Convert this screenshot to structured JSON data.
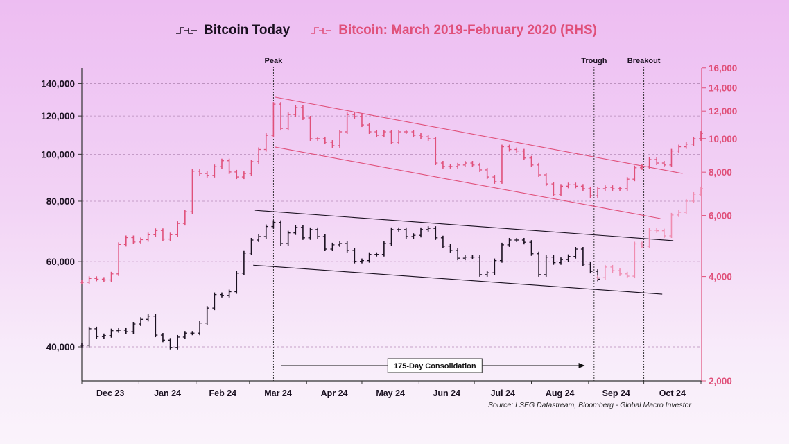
{
  "chart_data": {
    "type": "line",
    "title": "",
    "legend_position": "top",
    "grid": true,
    "x_axis": {
      "type": "date",
      "range": [
        "2023-12-01",
        "2024-11-01"
      ],
      "tick_labels": [
        "Dec 23",
        "Jan 24",
        "Feb 24",
        "Mar 24",
        "Apr 24",
        "May 24",
        "Jun 24",
        "Jul 24",
        "Aug 24",
        "Sep 24",
        "Oct 24"
      ]
    },
    "y_left": {
      "scale": "log",
      "range": [
        35000,
        150000
      ],
      "ticks": [
        40000,
        60000,
        80000,
        100000,
        120000,
        140000
      ],
      "tick_labels": [
        "40,000",
        "60,000",
        "80,000",
        "100,000",
        "120,000",
        "140,000"
      ]
    },
    "y_right": {
      "scale": "log",
      "range": [
        2000,
        16000
      ],
      "ticks": [
        2000,
        4000,
        6000,
        8000,
        10000,
        12000,
        14000,
        16000
      ],
      "tick_labels": [
        "2,000",
        "4,000",
        "6,000",
        "8,000",
        "10,000",
        "12,000",
        "14,000",
        "16,000"
      ]
    },
    "series": [
      {
        "name": "Bitcoin Today",
        "axis": "left",
        "color": "#1a1020",
        "points": [
          [
            "2023-12-01",
            40300
          ],
          [
            "2023-12-05",
            43600
          ],
          [
            "2023-12-09",
            42000
          ],
          [
            "2023-12-13",
            42200
          ],
          [
            "2023-12-17",
            43200
          ],
          [
            "2023-12-21",
            43300
          ],
          [
            "2023-12-25",
            43000
          ],
          [
            "2023-12-29",
            44600
          ],
          [
            "2024-01-02",
            45600
          ],
          [
            "2024-01-06",
            46300
          ],
          [
            "2024-01-10",
            42300
          ],
          [
            "2024-01-14",
            41300
          ],
          [
            "2024-01-18",
            39900
          ],
          [
            "2024-01-22",
            41900
          ],
          [
            "2024-01-26",
            42700
          ],
          [
            "2024-01-30",
            42700
          ],
          [
            "2024-02-03",
            44800
          ],
          [
            "2024-02-07",
            48100
          ],
          [
            "2024-02-11",
            51300
          ],
          [
            "2024-02-15",
            51100
          ],
          [
            "2024-02-19",
            52000
          ],
          [
            "2024-02-23",
            56800
          ],
          [
            "2024-02-27",
            62500
          ],
          [
            "2024-03-02",
            66500
          ],
          [
            "2024-03-06",
            67600
          ],
          [
            "2024-03-10",
            70900
          ],
          [
            "2024-03-14",
            72300
          ],
          [
            "2024-03-18",
            65400
          ],
          [
            "2024-03-22",
            68800
          ],
          [
            "2024-03-26",
            70600
          ],
          [
            "2024-03-30",
            67200
          ],
          [
            "2024-04-03",
            69900
          ],
          [
            "2024-04-07",
            67600
          ],
          [
            "2024-04-11",
            63700
          ],
          [
            "2024-04-15",
            65000
          ],
          [
            "2024-04-19",
            65400
          ],
          [
            "2024-04-23",
            63300
          ],
          [
            "2024-04-27",
            60100
          ],
          [
            "2024-05-01",
            60300
          ],
          [
            "2024-05-05",
            62100
          ],
          [
            "2024-05-09",
            62100
          ],
          [
            "2024-05-13",
            65400
          ],
          [
            "2024-05-17",
            69900
          ],
          [
            "2024-05-21",
            69900
          ],
          [
            "2024-05-25",
            67600
          ],
          [
            "2024-05-29",
            68000
          ],
          [
            "2024-06-02",
            69900
          ],
          [
            "2024-06-06",
            70300
          ],
          [
            "2024-06-10",
            67200
          ],
          [
            "2024-06-14",
            64600
          ],
          [
            "2024-06-18",
            63300
          ],
          [
            "2024-06-22",
            61000
          ],
          [
            "2024-06-26",
            61300
          ],
          [
            "2024-06-30",
            61300
          ],
          [
            "2024-07-04",
            56400
          ],
          [
            "2024-07-08",
            56900
          ],
          [
            "2024-07-12",
            60300
          ],
          [
            "2024-07-16",
            65000
          ],
          [
            "2024-07-20",
            66500
          ],
          [
            "2024-07-24",
            66500
          ],
          [
            "2024-07-28",
            65800
          ],
          [
            "2024-08-01",
            62300
          ],
          [
            "2024-08-05",
            56400
          ],
          [
            "2024-08-09",
            61300
          ],
          [
            "2024-08-13",
            59700
          ],
          [
            "2024-08-17",
            60600
          ],
          [
            "2024-08-21",
            61500
          ],
          [
            "2024-08-25",
            63700
          ],
          [
            "2024-08-29",
            59300
          ],
          [
            "2024-09-02",
            57300
          ],
          [
            "2024-09-06",
            55200
          ]
        ]
      },
      {
        "name": "Bitcoin: March 2019-February 2020 (RHS)",
        "axis": "right",
        "color": "#e0507a",
        "points": [
          [
            "2023-12-01",
            3850
          ],
          [
            "2023-12-05",
            3950
          ],
          [
            "2023-12-09",
            3930
          ],
          [
            "2023-12-13",
            3910
          ],
          [
            "2023-12-17",
            4070
          ],
          [
            "2023-12-21",
            4950
          ],
          [
            "2023-12-25",
            5180
          ],
          [
            "2023-12-29",
            5030
          ],
          [
            "2024-01-02",
            5110
          ],
          [
            "2024-01-06",
            5280
          ],
          [
            "2024-01-10",
            5430
          ],
          [
            "2024-01-14",
            5130
          ],
          [
            "2024-01-18",
            5280
          ],
          [
            "2024-01-22",
            5690
          ],
          [
            "2024-01-26",
            6150
          ],
          [
            "2024-01-30",
            8050
          ],
          [
            "2024-02-03",
            7930
          ],
          [
            "2024-02-07",
            7830
          ],
          [
            "2024-02-11",
            8300
          ],
          [
            "2024-02-15",
            8630
          ],
          [
            "2024-02-19",
            8010
          ],
          [
            "2024-02-23",
            7750
          ],
          [
            "2024-02-27",
            7930
          ],
          [
            "2024-03-02",
            8580
          ],
          [
            "2024-03-06",
            9300
          ],
          [
            "2024-03-10",
            10220
          ],
          [
            "2024-03-14",
            12570
          ],
          [
            "2024-03-18",
            10700
          ],
          [
            "2024-03-22",
            11730
          ],
          [
            "2024-03-26",
            12290
          ],
          [
            "2024-03-30",
            11470
          ],
          [
            "2024-04-03",
            9990
          ],
          [
            "2024-04-07",
            9990
          ],
          [
            "2024-04-11",
            9760
          ],
          [
            "2024-04-15",
            9540
          ],
          [
            "2024-04-19",
            10460
          ],
          [
            "2024-04-23",
            11730
          ],
          [
            "2024-04-27",
            11580
          ],
          [
            "2024-05-01",
            10950
          ],
          [
            "2024-05-05",
            10460
          ],
          [
            "2024-05-09",
            10220
          ],
          [
            "2024-05-13",
            10460
          ],
          [
            "2024-05-17",
            9760
          ],
          [
            "2024-05-21",
            10460
          ],
          [
            "2024-05-25",
            10460
          ],
          [
            "2024-05-29",
            10220
          ],
          [
            "2024-06-02",
            10120
          ],
          [
            "2024-06-06",
            9990
          ],
          [
            "2024-06-10",
            8500
          ],
          [
            "2024-06-14",
            8310
          ],
          [
            "2024-06-18",
            8310
          ],
          [
            "2024-06-22",
            8390
          ],
          [
            "2024-06-26",
            8500
          ],
          [
            "2024-06-30",
            8390
          ],
          [
            "2024-07-04",
            8120
          ],
          [
            "2024-07-08",
            7750
          ],
          [
            "2024-07-12",
            7510
          ],
          [
            "2024-07-16",
            9470
          ],
          [
            "2024-07-20",
            9300
          ],
          [
            "2024-07-24",
            9210
          ],
          [
            "2024-07-28",
            8790
          ],
          [
            "2024-08-01",
            8390
          ],
          [
            "2024-08-05",
            7860
          ],
          [
            "2024-08-09",
            7400
          ],
          [
            "2024-08-13",
            6910
          ],
          [
            "2024-08-17",
            7290
          ],
          [
            "2024-08-21",
            7360
          ],
          [
            "2024-08-25",
            7290
          ],
          [
            "2024-08-29",
            7170
          ],
          [
            "2024-09-02",
            6840
          ],
          [
            "2024-09-06",
            7170
          ],
          [
            "2024-09-10",
            7230
          ],
          [
            "2024-09-14",
            7170
          ],
          [
            "2024-09-18",
            7170
          ],
          [
            "2024-09-22",
            7640
          ],
          [
            "2024-09-26",
            8240
          ],
          [
            "2024-09-30",
            8310
          ],
          [
            "2024-10-04",
            8700
          ],
          [
            "2024-10-08",
            8500
          ],
          [
            "2024-10-12",
            8390
          ],
          [
            "2024-10-16",
            9210
          ],
          [
            "2024-10-20",
            9470
          ],
          [
            "2024-10-24",
            9640
          ],
          [
            "2024-10-28",
            9990
          ],
          [
            "2024-11-01",
            10360
          ]
        ]
      },
      {
        "axis": "right",
        "color": "#f08cb0",
        "points": [
          [
            "2024-09-06",
            3970
          ],
          [
            "2024-09-10",
            4260
          ],
          [
            "2024-09-14",
            4160
          ],
          [
            "2024-09-18",
            4070
          ],
          [
            "2024-09-22",
            4010
          ],
          [
            "2024-09-26",
            4970
          ],
          [
            "2024-09-30",
            4890
          ],
          [
            "2024-10-04",
            5440
          ],
          [
            "2024-10-08",
            5420
          ],
          [
            "2024-10-12",
            5240
          ],
          [
            "2024-10-16",
            6020
          ],
          [
            "2024-10-20",
            6130
          ],
          [
            "2024-10-24",
            6600
          ],
          [
            "2024-10-28",
            6910
          ],
          [
            "2024-11-01",
            7170
          ]
        ]
      }
    ],
    "trend_lines": [
      {
        "axis": "left",
        "color": "#1a1020",
        "from": [
          "2024-03-04",
          76600
        ],
        "to": [
          "2024-10-17",
          66300
        ]
      },
      {
        "axis": "left",
        "color": "#1a1020",
        "from": [
          "2024-03-03",
          59000
        ],
        "to": [
          "2024-10-11",
          51400
        ]
      },
      {
        "axis": "right",
        "color": "#e0507a",
        "from": [
          "2024-03-15",
          13170
        ],
        "to": [
          "2024-10-22",
          7930
        ]
      },
      {
        "axis": "right",
        "color": "#e0507a",
        "from": [
          "2024-03-15",
          9450
        ],
        "to": [
          "2024-10-10",
          5880
        ]
      }
    ],
    "markers": [
      {
        "label": "Peak",
        "date": "2024-03-14"
      },
      {
        "label": "Trough",
        "date": "2024-09-04"
      },
      {
        "label": "Breakout",
        "date": "2024-10-01"
      }
    ],
    "annotation": {
      "label": "175-Day Consolidation",
      "from": "2024-03-18",
      "to": "2024-08-30"
    },
    "source": "Source: LSEG Datastream, Bloomberg - Global Macro Investor"
  }
}
